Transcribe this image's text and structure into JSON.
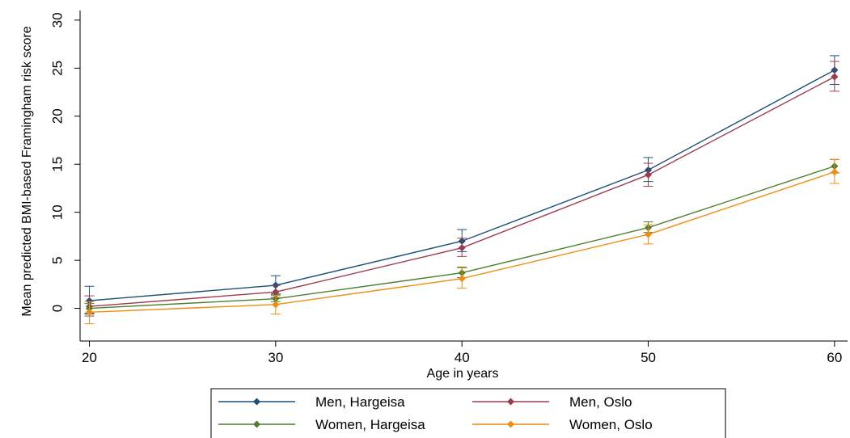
{
  "chart_data": {
    "type": "line",
    "xlabel": "Age in years",
    "ylabel": "Mean predicted BMI-based Framingham risk score",
    "x": [
      20,
      30,
      40,
      50,
      60
    ],
    "xticks": [
      "20",
      "30",
      "40",
      "50",
      "60"
    ],
    "yticks": [
      "0",
      "5",
      "10",
      "15",
      "20",
      "25",
      "30"
    ],
    "xlim": [
      19.5,
      60.7
    ],
    "ylim": [
      -3.4,
      31
    ],
    "grid": false,
    "legend_position": "bottom",
    "series": [
      {
        "name": "Men, Hargeisa",
        "color": "#1b4f7a",
        "values": [
          0.8,
          2.4,
          7.0,
          14.4,
          24.8
        ],
        "ci_low": [
          -0.6,
          1.5,
          5.9,
          13.2,
          23.3
        ],
        "ci_high": [
          2.3,
          3.4,
          8.2,
          15.7,
          26.3
        ]
      },
      {
        "name": "Men, Oslo",
        "color": "#9e3a4e",
        "values": [
          0.2,
          1.7,
          6.3,
          13.9,
          24.1
        ],
        "ci_low": [
          -0.8,
          1.1,
          5.4,
          12.7,
          22.6
        ],
        "ci_high": [
          1.3,
          2.4,
          7.3,
          15.1,
          25.7
        ]
      },
      {
        "name": "Women, Hargeisa",
        "color": "#4f7f2e",
        "values": [
          0.0,
          1.0,
          3.7,
          8.4,
          14.8
        ],
        "ci_low": [
          -0.5,
          0.7,
          3.2,
          7.9,
          14.1
        ],
        "ci_high": [
          0.5,
          1.4,
          4.3,
          9.0,
          15.5
        ]
      },
      {
        "name": "Women, Oslo",
        "color": "#f28c0f",
        "values": [
          -0.4,
          0.4,
          3.1,
          7.7,
          14.2
        ],
        "ci_low": [
          -1.6,
          -0.6,
          2.1,
          6.7,
          13.0
        ],
        "ci_high": [
          0.7,
          1.3,
          4.2,
          8.7,
          15.5
        ]
      }
    ]
  }
}
